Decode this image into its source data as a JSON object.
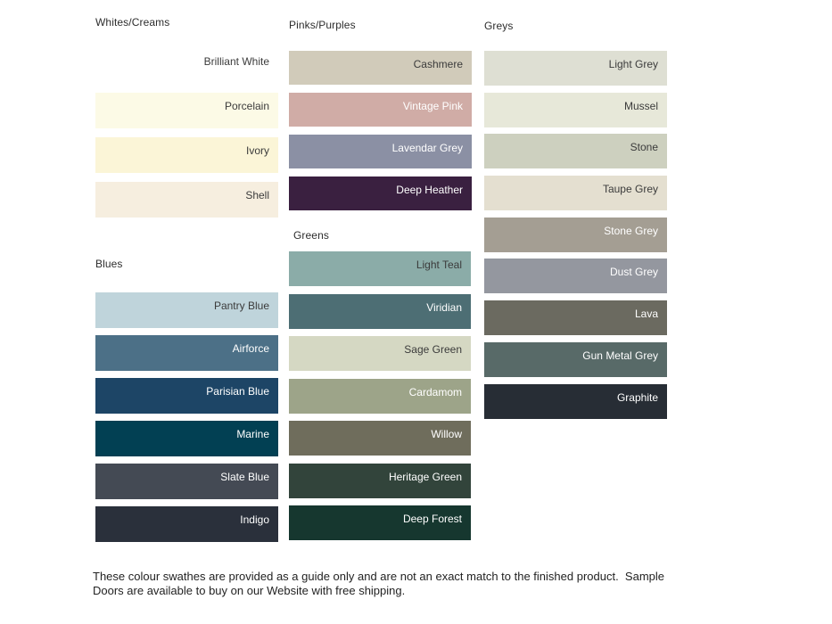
{
  "page": {
    "background": "#ffffff",
    "dark_label_color": "#3b3b3b",
    "light_label_color": "#ffffff"
  },
  "groups": [
    {
      "title": "Whites/Creams",
      "swatches": [
        {
          "name": "Brilliant White",
          "color": "#ffffff",
          "label_color": "#3b3b3b"
        },
        {
          "name": "Porcelain",
          "color": "#fcfae6",
          "label_color": "#3b3b3b"
        },
        {
          "name": "Ivory",
          "color": "#fbf5d7",
          "label_color": "#3b3b3b"
        },
        {
          "name": "Shell",
          "color": "#f6eedf",
          "label_color": "#3b3b3b"
        }
      ]
    },
    {
      "title": "Blues",
      "swatches": [
        {
          "name": "Pantry Blue",
          "color": "#bfd4db",
          "label_color": "#3b3b3b"
        },
        {
          "name": "Airforce",
          "color": "#4c7087",
          "label_color": "#ffffff"
        },
        {
          "name": "Parisian Blue",
          "color": "#1d4566",
          "label_color": "#ffffff"
        },
        {
          "name": "Marine",
          "color": "#024053",
          "label_color": "#ffffff"
        },
        {
          "name": "Slate Blue",
          "color": "#444a54",
          "label_color": "#ffffff"
        },
        {
          "name": "Indigo",
          "color": "#2a303b",
          "label_color": "#ffffff"
        }
      ]
    },
    {
      "title": "Pinks/Purples",
      "swatches": [
        {
          "name": "Cashmere",
          "color": "#d1cbba",
          "label_color": "#3b3b3b"
        },
        {
          "name": "Vintage Pink",
          "color": "#d0aca6",
          "label_color": "#ffffff"
        },
        {
          "name": "Lavendar Grey",
          "color": "#8b90a4",
          "label_color": "#ffffff"
        },
        {
          "name": "Deep Heather",
          "color": "#3a2040",
          "label_color": "#ffffff"
        }
      ]
    },
    {
      "title": "Greens",
      "swatches": [
        {
          "name": "Light Teal",
          "color": "#8baca8",
          "label_color": "#3b3b3b"
        },
        {
          "name": "Viridian",
          "color": "#4d6e74",
          "label_color": "#ffffff"
        },
        {
          "name": "Sage Green",
          "color": "#d5d8c3",
          "label_color": "#3b3b3b"
        },
        {
          "name": "Cardamom",
          "color": "#9da489",
          "label_color": "#ffffff"
        },
        {
          "name": "Willow",
          "color": "#6f6d5c",
          "label_color": "#ffffff"
        },
        {
          "name": "Heritage Green",
          "color": "#32443b",
          "label_color": "#ffffff"
        },
        {
          "name": "Deep Forest",
          "color": "#16372f",
          "label_color": "#ffffff"
        }
      ]
    },
    {
      "title": "Greys",
      "swatches": [
        {
          "name": "Light Grey",
          "color": "#dedfd3",
          "label_color": "#3b3b3b"
        },
        {
          "name": "Mussel",
          "color": "#e7e8d9",
          "label_color": "#3b3b3b"
        },
        {
          "name": "Stone",
          "color": "#cdd0bf",
          "label_color": "#3b3b3b"
        },
        {
          "name": "Taupe Grey",
          "color": "#e4dfd0",
          "label_color": "#3b3b3b"
        },
        {
          "name": "Stone Grey",
          "color": "#a49e93",
          "label_color": "#ffffff"
        },
        {
          "name": "Dust Grey",
          "color": "#94979f",
          "label_color": "#ffffff"
        },
        {
          "name": "Lava",
          "color": "#6b6a60",
          "label_color": "#ffffff"
        },
        {
          "name": "Gun Metal Grey",
          "color": "#586a68",
          "label_color": "#ffffff"
        },
        {
          "name": "Graphite",
          "color": "#272d35",
          "label_color": "#ffffff"
        }
      ]
    }
  ],
  "footer": {
    "line1": "These colour swathes are provided as a guide only and are not an exact match to the finished product.  Sample",
    "line2": "Doors are available to buy on our Website with free shipping."
  }
}
